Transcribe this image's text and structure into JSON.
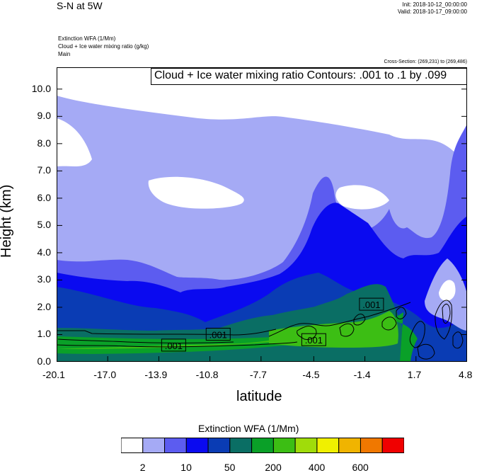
{
  "header": {
    "title": "S-N at 5W",
    "init": "Init: 2018-10-12_00:00:00",
    "valid": "Valid: 2018-10-17_09:00:00",
    "field1": "Extinction WFA   (1/Mm)",
    "field2": "Cloud + Ice water mixing ratio   (g/kg)",
    "field3": "Main",
    "cross_section": "Cross-Section: (269,231) to (269,486)"
  },
  "chart_data": {
    "type": "heatmap",
    "title": "",
    "annotation": "Cloud + Ice water mixing ratio Contours: .001 to .1 by .099",
    "xlabel": "latitude",
    "ylabel": "Height (km)",
    "x_ticks": [
      "-20.1",
      "-17.0",
      "-13.9",
      "-10.8",
      "-7.7",
      "-4.5",
      "-1.4",
      "1.7",
      "4.8"
    ],
    "y_ticks": [
      "0.0",
      "1.0",
      "2.0",
      "3.0",
      "4.0",
      "5.0",
      "6.0",
      "7.0",
      "8.0",
      "9.0",
      "10.0"
    ],
    "xlim": [
      -20.1,
      4.8
    ],
    "ylim": [
      0,
      10.8
    ],
    "contour_labels": [
      {
        "text": ".001",
        "x": -13.0,
        "y": 0.6
      },
      {
        "text": ".001",
        "x": -10.3,
        "y": 1.0
      },
      {
        "text": ".001",
        "x": -4.5,
        "y": 0.8
      },
      {
        "text": ".001",
        "x": -1.0,
        "y": 2.1
      }
    ],
    "colorbar": {
      "title": "Extinction WFA  (1/Mm)",
      "colors": [
        "#ffffff",
        "#a5aaf5",
        "#5c5cf0",
        "#0a0af0",
        "#0a3cb4",
        "#0a6e64",
        "#0aa028",
        "#3cbe14",
        "#a0dc0a",
        "#f0f000",
        "#f0b400",
        "#f07800",
        "#f00000"
      ],
      "labels": [
        "2",
        "10",
        "50",
        "200",
        "400",
        "600"
      ]
    }
  }
}
